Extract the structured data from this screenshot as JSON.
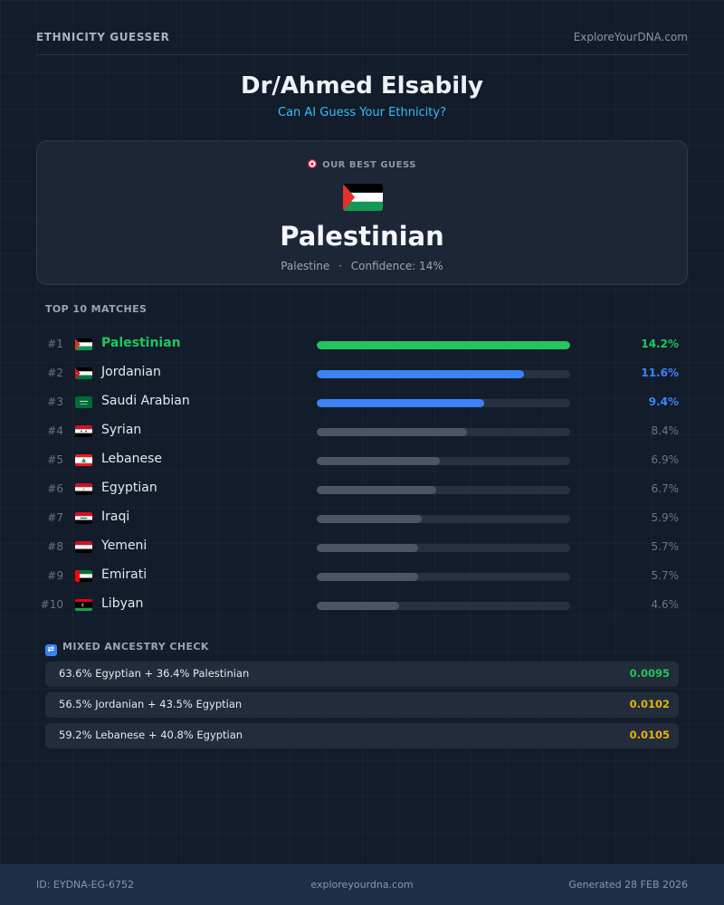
{
  "header": {
    "brand": "ETHNICITY GUESSER",
    "site": "ExploreYourDNA.com"
  },
  "hero": {
    "title": "Dr/Ahmed Elsabily",
    "subtitle": "Can AI Guess Your Ethnicity?"
  },
  "best_guess": {
    "label": "OUR BEST GUESS",
    "icon": "target-icon",
    "flag": "palestine",
    "name": "Palestinian",
    "country": "Palestine",
    "separator": "·",
    "confidence": "Confidence: 14%"
  },
  "matches": {
    "title": "TOP 10 MATCHES",
    "max_percent": 14.2,
    "items": [
      {
        "rank": "#1",
        "flag": "palestine",
        "name": "Palestinian",
        "percent": 14.2,
        "percent_label": "14.2%",
        "tier": 1
      },
      {
        "rank": "#2",
        "flag": "jordan",
        "name": "Jordanian",
        "percent": 11.6,
        "percent_label": "11.6%",
        "tier": 2
      },
      {
        "rank": "#3",
        "flag": "saudi",
        "name": "Saudi Arabian",
        "percent": 9.4,
        "percent_label": "9.4%",
        "tier": 2
      },
      {
        "rank": "#4",
        "flag": "syria",
        "name": "Syrian",
        "percent": 8.4,
        "percent_label": "8.4%",
        "tier": 3
      },
      {
        "rank": "#5",
        "flag": "lebanon",
        "name": "Lebanese",
        "percent": 6.9,
        "percent_label": "6.9%",
        "tier": 3
      },
      {
        "rank": "#6",
        "flag": "egypt",
        "name": "Egyptian",
        "percent": 6.7,
        "percent_label": "6.7%",
        "tier": 3
      },
      {
        "rank": "#7",
        "flag": "iraq",
        "name": "Iraqi",
        "percent": 5.9,
        "percent_label": "5.9%",
        "tier": 3
      },
      {
        "rank": "#8",
        "flag": "yemen",
        "name": "Yemeni",
        "percent": 5.7,
        "percent_label": "5.7%",
        "tier": 3
      },
      {
        "rank": "#9",
        "flag": "uae",
        "name": "Emirati",
        "percent": 5.7,
        "percent_label": "5.7%",
        "tier": 3
      },
      {
        "rank": "#10",
        "flag": "libya",
        "name": "Libyan",
        "percent": 4.6,
        "percent_label": "4.6%",
        "tier": 3
      }
    ]
  },
  "mixed": {
    "title": "MIXED ANCESTRY CHECK",
    "icon": "shuffle-icon",
    "items": [
      {
        "text": "63.6% Egyptian + 36.4% Palestinian",
        "score": "0.0095",
        "color": "#22c55e"
      },
      {
        "text": "56.5% Jordanian + 43.5% Egyptian",
        "score": "0.0102",
        "color": "#eab308"
      },
      {
        "text": "59.2% Lebanese + 40.8% Egyptian",
        "score": "0.0105",
        "color": "#eab308"
      }
    ]
  },
  "footer": {
    "id": "ID: EYDNA-EG-6752",
    "site": "exploreyourdna.com",
    "generated": "Generated 28 FEB 2026"
  },
  "colors": {
    "accent": "#38bdf8",
    "top_match": "#22c55e",
    "secondary_match": "#3b82f6",
    "muted_bar": "#4a5667"
  }
}
